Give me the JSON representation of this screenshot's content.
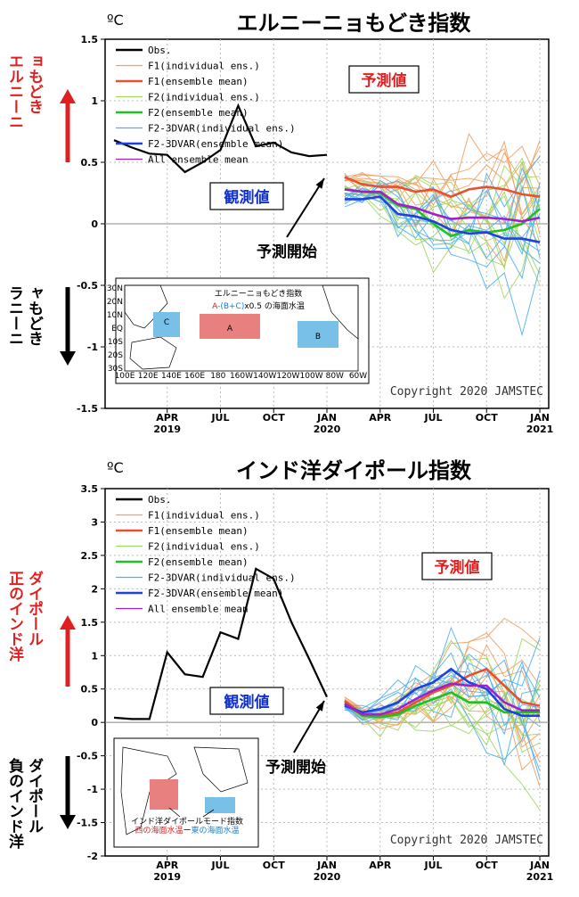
{
  "chart_data": [
    {
      "type": "line",
      "title": "エルニーニョもどき指数",
      "unit": "ºC",
      "ylim": [
        -1.5,
        1.5
      ],
      "yticks": [
        "1.5",
        "1",
        "0.5",
        "0",
        "-0.5",
        "-1",
        "-1.5"
      ],
      "xticks": [
        {
          "label": "APR",
          "year": "2019"
        },
        {
          "label": "JUL",
          "year": ""
        },
        {
          "label": "OCT",
          "year": ""
        },
        {
          "label": "JAN",
          "year": "2020"
        },
        {
          "label": "APR",
          "year": ""
        },
        {
          "label": "JUL",
          "year": ""
        },
        {
          "label": "OCT",
          "year": ""
        },
        {
          "label": "JAN",
          "year": "2021"
        }
      ],
      "months": [
        "2019-01",
        "2019-02",
        "2019-03",
        "2019-04",
        "2019-05",
        "2019-06",
        "2019-07",
        "2019-08",
        "2019-09",
        "2019-10",
        "2019-11",
        "2019-12",
        "2020-01",
        "2020-02",
        "2020-03",
        "2020-04",
        "2020-05",
        "2020-06",
        "2020-07",
        "2020-08",
        "2020-09",
        "2020-10",
        "2020-11",
        "2020-12",
        "2021-01"
      ],
      "legend": [
        {
          "label": "Obs.",
          "color": "#000000"
        },
        {
          "label": "F1(individual ens.)",
          "color": "#f0a060"
        },
        {
          "label": "F1(ensemble mean)",
          "color": "#e85030"
        },
        {
          "label": "F2(individual ens.)",
          "color": "#a0d860"
        },
        {
          "label": "F2(ensemble mean)",
          "color": "#20c020"
        },
        {
          "label": "F2-3DVAR(individual ens.)",
          "color": "#50b0f0"
        },
        {
          "label": "F2-3DVAR(ensemble mean)",
          "color": "#2040e0"
        },
        {
          "label": "All ensemble mean",
          "color": "#a020d0"
        }
      ],
      "series": [
        {
          "name": "Obs.",
          "x_start": 0,
          "values": [
            0.68,
            0.62,
            0.57,
            0.56,
            0.42,
            0.5,
            0.6,
            0.96,
            0.63,
            0.66,
            0.58,
            0.55,
            0.56
          ]
        },
        {
          "name": "F1(ensemble mean)",
          "x_start": 13,
          "values": [
            0.38,
            0.32,
            0.3,
            0.3,
            0.26,
            0.28,
            0.22,
            0.28,
            0.3,
            0.28,
            0.24,
            0.22
          ]
        },
        {
          "name": "F2(ensemble mean)",
          "x_start": 13,
          "values": [
            0.28,
            0.26,
            0.25,
            0.15,
            0.12,
            0.0,
            -0.1,
            -0.05,
            -0.07,
            -0.05,
            0.0,
            0.12
          ]
        },
        {
          "name": "F2-3DVAR(ensemble mean)",
          "x_start": 13,
          "values": [
            0.2,
            0.2,
            0.22,
            0.08,
            0.06,
            0.02,
            -0.05,
            -0.08,
            -0.07,
            -0.12,
            -0.12,
            -0.15
          ]
        },
        {
          "name": "All ensemble mean",
          "x_start": 13,
          "values": [
            0.28,
            0.26,
            0.26,
            0.16,
            0.13,
            0.08,
            0.04,
            0.05,
            0.05,
            0.04,
            0.02,
            0.05
          ]
        }
      ],
      "annotations": {
        "forecast": "予測値",
        "observed": "観測値",
        "start": "予測開始",
        "positive": "エルニーニョもどき",
        "negative": "ラニーニャもどき",
        "copyright": "Copyright 2020 JAMSTEC"
      },
      "inset": {
        "title": "エルニーニョもどき指数",
        "formula_a": "A-",
        "formula_b": "(B+C)",
        "formula_rest": "x0.5 の海面水温",
        "boxes": [
          "A",
          "B",
          "C"
        ],
        "lat_labels": [
          "30N",
          "20N",
          "10N",
          "EQ",
          "10S",
          "20S",
          "30S"
        ],
        "lon_labels": [
          "100E",
          "120E",
          "140E",
          "160E",
          "180",
          "160W",
          "140W",
          "120W",
          "100W",
          "80W",
          "60W"
        ]
      }
    },
    {
      "type": "line",
      "title": "インド洋ダイポール指数",
      "unit": "ºC",
      "ylim": [
        -2,
        3.5
      ],
      "yticks": [
        "3.5",
        "3",
        "2.5",
        "2",
        "1.5",
        "1",
        "0.5",
        "0",
        "-0.5",
        "-1",
        "-1.5",
        "-2"
      ],
      "xticks": [
        {
          "label": "APR",
          "year": "2019"
        },
        {
          "label": "JUL",
          "year": ""
        },
        {
          "label": "OCT",
          "year": ""
        },
        {
          "label": "JAN",
          "year": "2020"
        },
        {
          "label": "APR",
          "year": ""
        },
        {
          "label": "JUL",
          "year": ""
        },
        {
          "label": "OCT",
          "year": ""
        },
        {
          "label": "JAN",
          "year": "2021"
        }
      ],
      "legend": [
        {
          "label": "Obs.",
          "color": "#000000"
        },
        {
          "label": "F1(individual ens.)",
          "color": "#f0a060"
        },
        {
          "label": "F1(ensemble mean)",
          "color": "#e85030"
        },
        {
          "label": "F2(individual ens.)",
          "color": "#a0d860"
        },
        {
          "label": "F2(ensemble mean)",
          "color": "#20c020"
        },
        {
          "label": "F2-3DVAR(individual ens.)",
          "color": "#50b0f0"
        },
        {
          "label": "F2-3DVAR(ensemble mean)",
          "color": "#2040e0"
        },
        {
          "label": "All ensemble mean",
          "color": "#a020d0"
        }
      ],
      "series": [
        {
          "name": "Obs.",
          "x_start": 0,
          "values": [
            0.07,
            0.05,
            0.05,
            1.05,
            0.72,
            0.68,
            1.35,
            1.25,
            2.3,
            2.15,
            1.5,
            0.95,
            0.38
          ]
        },
        {
          "name": "F1(ensemble mean)",
          "x_start": 13,
          "values": [
            0.32,
            0.12,
            0.1,
            0.15,
            0.3,
            0.45,
            0.55,
            0.7,
            0.8,
            0.55,
            0.3,
            0.25
          ]
        },
        {
          "name": "F2(ensemble mean)",
          "x_start": 13,
          "values": [
            0.28,
            0.1,
            0.08,
            0.12,
            0.25,
            0.35,
            0.45,
            0.3,
            0.3,
            0.15,
            0.15,
            0.15
          ]
        },
        {
          "name": "F2-3DVAR(ensemble mean)",
          "x_start": 13,
          "values": [
            0.25,
            0.15,
            0.2,
            0.3,
            0.5,
            0.6,
            0.8,
            0.6,
            0.5,
            0.2,
            0.1,
            0.1
          ]
        },
        {
          "name": "All ensemble mean",
          "x_start": 13,
          "values": [
            0.28,
            0.12,
            0.12,
            0.2,
            0.35,
            0.48,
            0.58,
            0.55,
            0.55,
            0.3,
            0.18,
            0.18
          ]
        }
      ],
      "annotations": {
        "forecast": "予測値",
        "observed": "観測値",
        "start": "予測開始",
        "positive": "正のインド洋ダイポール",
        "negative": "負のインド洋ダイポール",
        "copyright": "Copyright 2020 JAMSTEC"
      },
      "inset": {
        "title": "インド洋ダイポールモード指数",
        "formula_a": "西の海面水温",
        "formula_sep": "ー",
        "formula_b": "東の海面水温"
      }
    }
  ]
}
